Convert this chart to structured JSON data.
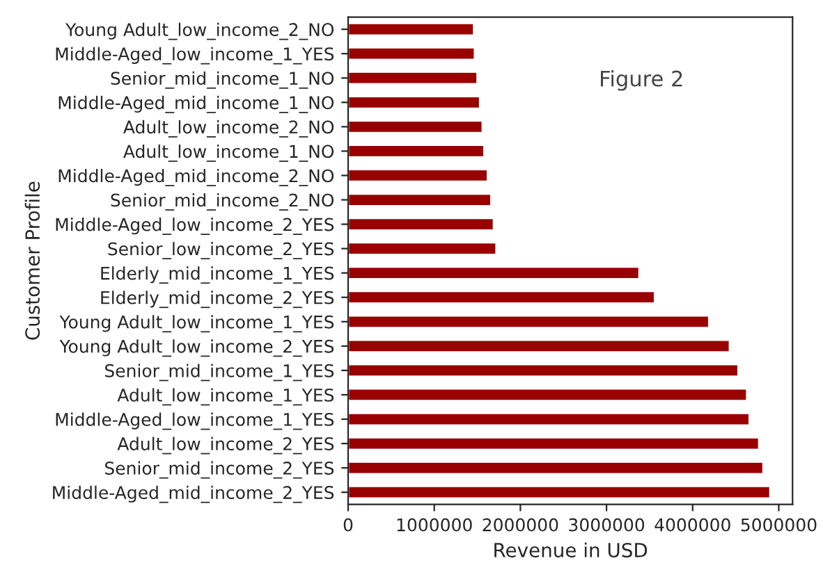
{
  "chart_data": {
    "type": "bar",
    "orientation": "horizontal",
    "xlabel": "Revenue in USD",
    "ylabel": "Customer Profile",
    "categories": [
      "Young Adult_low_income_2_NO",
      "Middle-Aged_low_income_1_YES",
      "Senior_mid_income_1_NO",
      "Middle-Aged_mid_income_1_NO",
      "Adult_low_income_2_NO",
      "Adult_low_income_1_NO",
      "Middle-Aged_mid_income_2_NO",
      "Senior_mid_income_2_NO",
      "Middle-Aged_low_income_2_YES",
      "Senior_low_income_2_YES",
      "Elderly_mid_income_1_YES",
      "Elderly_mid_income_2_YES",
      "Young Adult_low_income_1_YES",
      "Young Adult_low_income_2_YES",
      "Senior_mid_income_1_YES",
      "Adult_low_income_1_YES",
      "Middle-Aged_low_income_1_YES",
      "Adult_low_income_2_YES",
      "Senior_mid_income_2_YES",
      "Middle-Aged_mid_income_2_YES"
    ],
    "values": [
      1460000,
      1470000,
      1500000,
      1530000,
      1560000,
      1580000,
      1620000,
      1660000,
      1690000,
      1720000,
      3380000,
      3560000,
      4190000,
      4430000,
      4530000,
      4630000,
      4660000,
      4770000,
      4820000,
      4900000
    ],
    "color": "#990000",
    "xlim": [
      0,
      5160000
    ],
    "xticks": [
      0,
      1000000,
      2000000,
      3000000,
      4000000,
      5000000
    ],
    "grid": false,
    "legend": false,
    "annotations": [
      "Figure 2"
    ]
  }
}
